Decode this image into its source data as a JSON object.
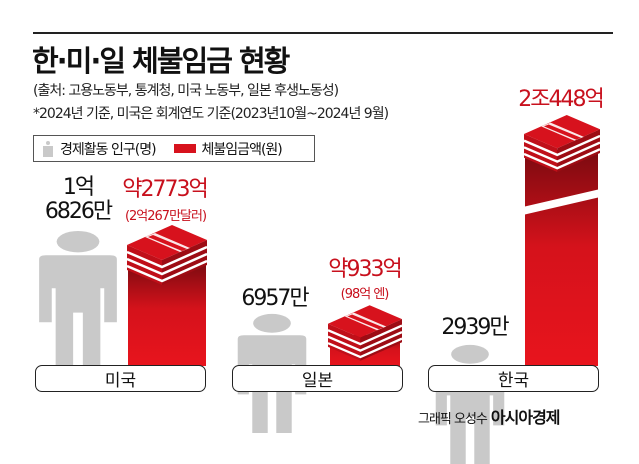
{
  "header": {
    "title": "한·미·일 체불임금 현황",
    "source": "(출처: 고용노동부, 통계청, 미국 노동부, 일본 후생노동성)",
    "note": "*2024년 기준, 미국은 회계연도 기준(2023년10월~2024년 9월)"
  },
  "legend": {
    "population": "경제활동 인구(명)",
    "unpaid_wages": "체불임금액(원)"
  },
  "colors": {
    "person": "#c9c9c9",
    "money": "#d7121d",
    "money_label": "#c8101d"
  },
  "chart_data": {
    "type": "bar",
    "categories": [
      "미국",
      "일본",
      "한국"
    ],
    "series": [
      {
        "name": "경제활동 인구(명)",
        "values": [
          168260000,
          69570000,
          29390000
        ],
        "labels": [
          [
            "1억",
            "6826만"
          ],
          [
            "6957만"
          ],
          [
            "2939만"
          ]
        ]
      },
      {
        "name": "체불임금액(원)",
        "values": [
          277300000000,
          93300000000,
          2044800000000
        ],
        "labels": [
          "약2773억",
          "약933억",
          "2조448억"
        ],
        "sublabels": [
          "(2억267만달러)",
          "(98억 엔)",
          ""
        ]
      }
    ],
    "axis_break": "한국 체불임금액 bar"
  },
  "credit": {
    "text": "그래픽 오성수",
    "brand": "아시아경제"
  }
}
